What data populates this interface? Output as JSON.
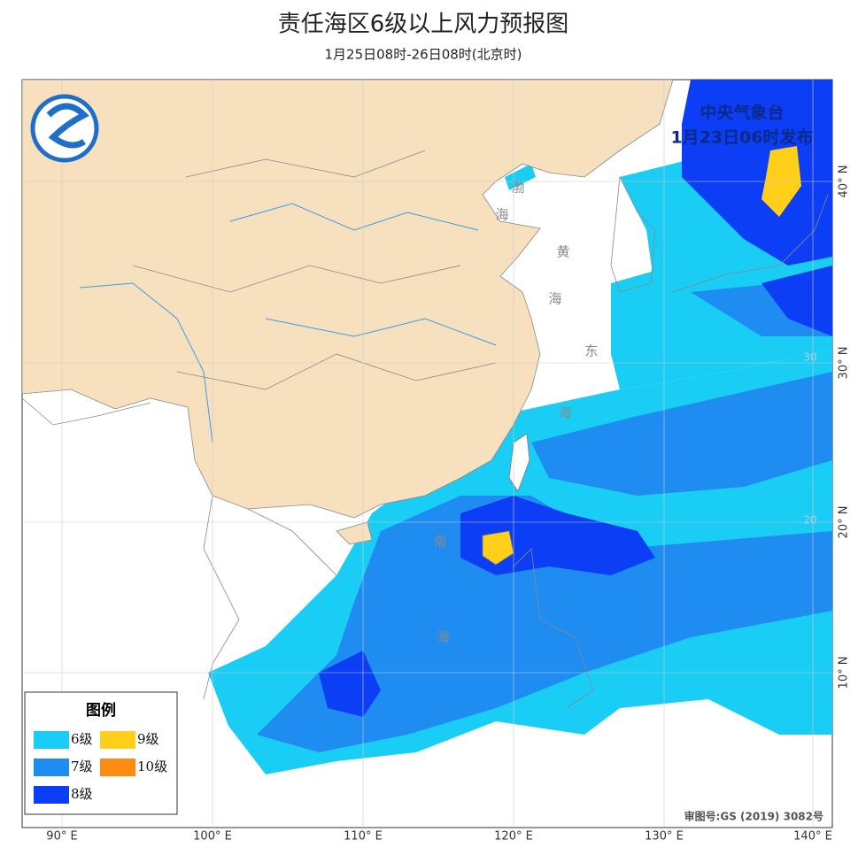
{
  "title": "责任海区6级以上风力预报图",
  "subtitle": "1月25日08时-26日08时(北京时)",
  "issuer": "中央气象台",
  "issue_time": "1月23日06时发布",
  "legend": {
    "title": "图例",
    "items": [
      {
        "label": "6级",
        "color": "#19cdf5"
      },
      {
        "label": "7级",
        "color": "#1e8cf0"
      },
      {
        "label": "8级",
        "color": "#0b3ef5"
      },
      {
        "label": "9级",
        "color": "#ffcf1a"
      },
      {
        "label": "10级",
        "color": "#ff8c10"
      }
    ]
  },
  "sea_labels": [
    "渤",
    "海",
    "黄",
    "海",
    "东",
    "海",
    "南",
    "海"
  ],
  "lon_labels": [
    "90° E",
    "100° E",
    "110° E",
    "120° E",
    "130° E",
    "140° E"
  ],
  "lat_labels": [
    "40° N",
    "30° N",
    "20° N",
    "10° N"
  ],
  "inner_lat_labels": [
    "30",
    "20"
  ],
  "approval": "审图号:GS (2019) 3082号"
}
